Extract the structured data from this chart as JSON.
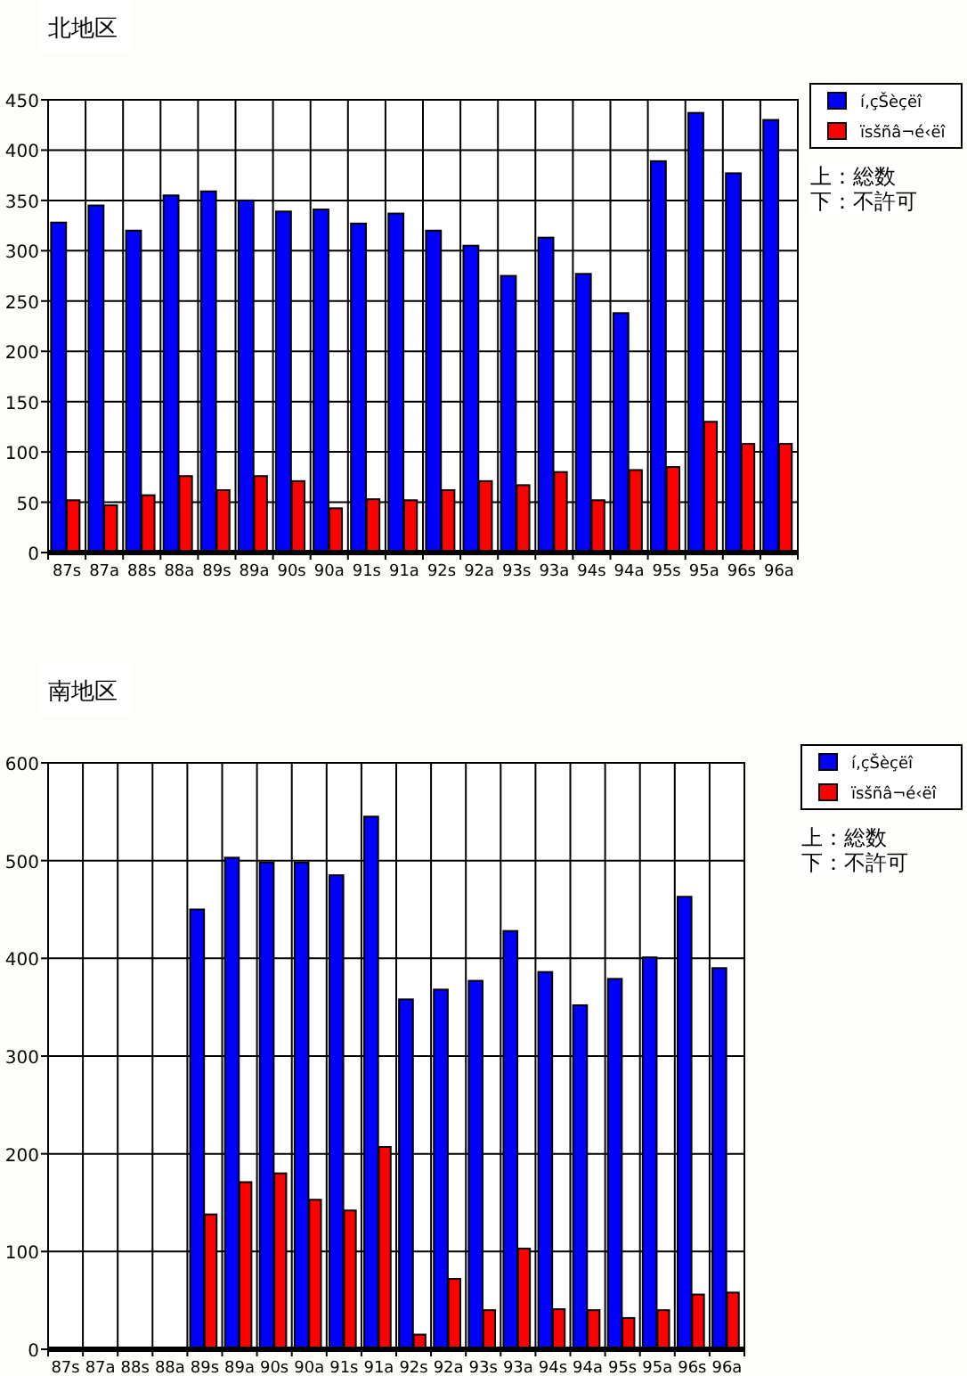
{
  "chart_data": [
    {
      "type": "bar",
      "title": "北地区",
      "categories": [
        "87s",
        "87a",
        "88s",
        "88a",
        "89s",
        "89a",
        "90s",
        "90a",
        "91s",
        "91a",
        "92s",
        "92a",
        "93s",
        "93a",
        "94s",
        "94a",
        "95s",
        "95a",
        "96s",
        "96a"
      ],
      "series": [
        {
          "name": "í‚çŠèçëî",
          "color": "#0000ff",
          "values": [
            328,
            345,
            320,
            355,
            359,
            350,
            339,
            341,
            327,
            337,
            320,
            305,
            275,
            313,
            277,
            238,
            389,
            437,
            377,
            430
          ]
        },
        {
          "name": "ïsšñâ¬é‹ëî",
          "color": "#ff0000",
          "values": [
            52,
            47,
            57,
            76,
            62,
            76,
            71,
            44,
            53,
            52,
            62,
            71,
            67,
            80,
            52,
            82,
            85,
            130,
            108,
            108
          ]
        }
      ],
      "ylim": [
        0,
        450
      ],
      "yticks": [
        0,
        50,
        100,
        150,
        200,
        250,
        300,
        350,
        400,
        450
      ],
      "grid": true,
      "legend": "top right",
      "annotations": [
        "上：総数",
        "下：不許可"
      ]
    },
    {
      "type": "bar",
      "title": "南地区",
      "categories": [
        "87s",
        "87a",
        "88s",
        "88a",
        "89s",
        "89a",
        "90s",
        "90a",
        "91s",
        "91a",
        "92s",
        "92a",
        "93s",
        "93a",
        "94s",
        "94a",
        "95s",
        "95a",
        "96s",
        "96a"
      ],
      "series": [
        {
          "name": "í‚çŠèçëî",
          "color": "#0000ff",
          "values": [
            null,
            null,
            null,
            null,
            450,
            503,
            498,
            498,
            485,
            545,
            358,
            368,
            377,
            428,
            386,
            352,
            379,
            401,
            463,
            390
          ]
        },
        {
          "name": "ïsšñâ¬é‹ëî",
          "color": "#ff0000",
          "values": [
            null,
            null,
            null,
            null,
            138,
            171,
            180,
            153,
            142,
            207,
            15,
            72,
            40,
            103,
            41,
            40,
            32,
            40,
            56,
            58
          ]
        }
      ],
      "ylim": [
        0,
        600
      ],
      "yticks": [
        0,
        100,
        200,
        300,
        400,
        500,
        600
      ],
      "grid": true,
      "legend": "top right",
      "annotations": [
        "上：総数",
        "下：不許可"
      ]
    }
  ]
}
